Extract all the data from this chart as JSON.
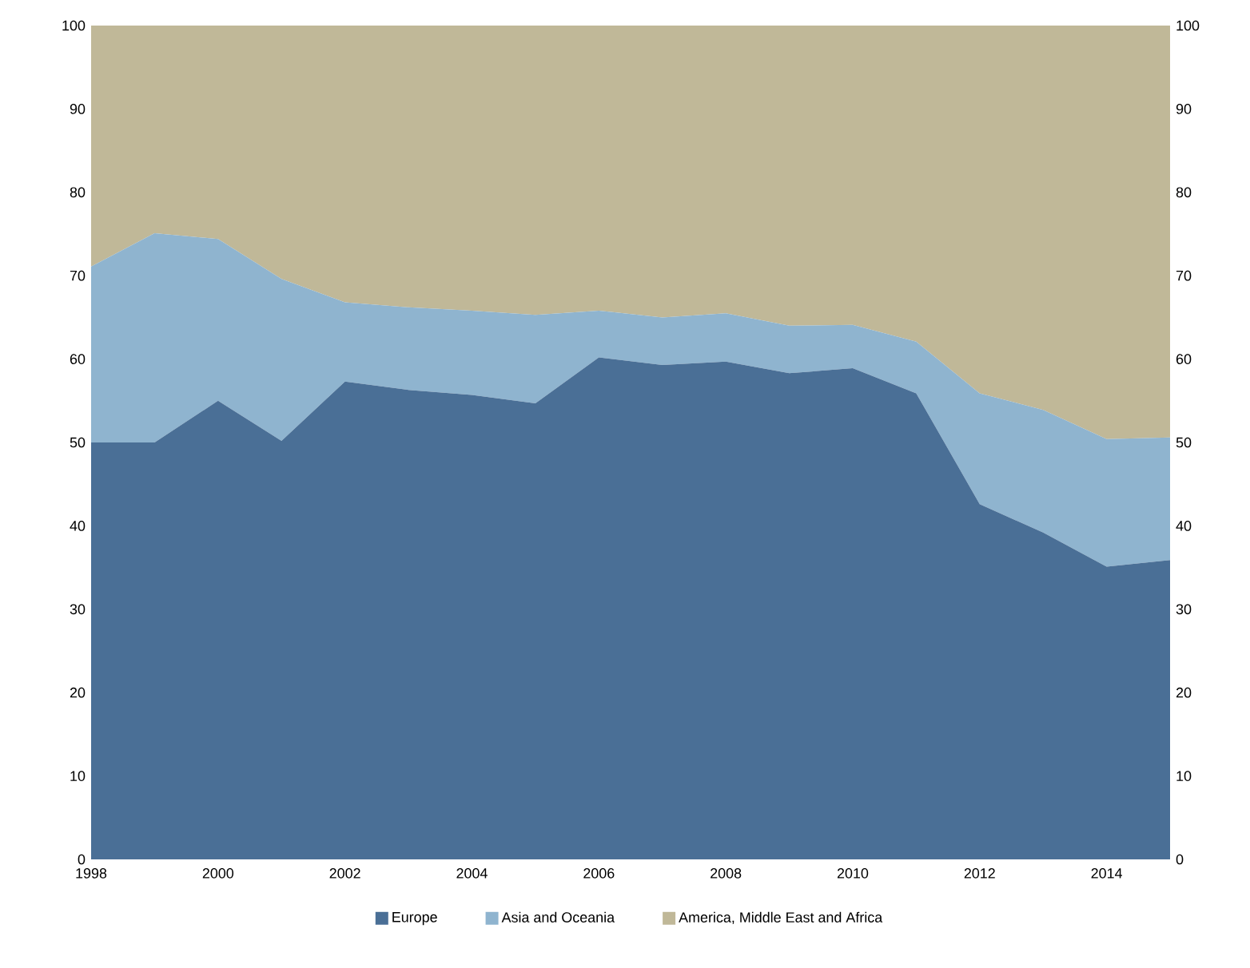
{
  "chart_data": {
    "type": "area",
    "stacked": true,
    "x": [
      1998,
      1999,
      2000,
      2001,
      2002,
      2003,
      2004,
      2005,
      2006,
      2007,
      2008,
      2009,
      2010,
      2011,
      2012,
      2013,
      2014,
      2015
    ],
    "series": [
      {
        "name": "Europe",
        "color": "#4a6f96",
        "values": [
          50,
          50,
          55,
          50.2,
          57.3,
          56.3,
          55.7,
          54.7,
          60.2,
          59.3,
          59.7,
          58.3,
          58.9,
          55.9,
          42.6,
          39.2,
          35.1,
          35.9
        ]
      },
      {
        "name": "Asia and Oceania",
        "color": "#8fb4cf",
        "values": [
          21.1,
          25.1,
          19.4,
          19.4,
          9.5,
          9.9,
          10.1,
          10.6,
          5.6,
          5.7,
          5.8,
          5.7,
          5.2,
          6.2,
          13.3,
          14.7,
          15.3,
          14.7
        ]
      },
      {
        "name": "America, Middle East and Africa",
        "color": "#c0b898",
        "values": [
          28.9,
          24.9,
          25.6,
          30.4,
          33.2,
          33.8,
          34.2,
          34.7,
          34.2,
          35.0,
          34.5,
          36.0,
          35.9,
          37.9,
          44.1,
          46.1,
          49.6,
          49.4
        ]
      }
    ],
    "xlim": [
      1998,
      2015
    ],
    "xticks": [
      1998,
      2000,
      2002,
      2004,
      2006,
      2008,
      2010,
      2012,
      2014
    ],
    "ylim": [
      0,
      100
    ],
    "yticks": [
      0,
      10,
      20,
      30,
      40,
      50,
      60,
      70,
      80,
      90,
      100
    ],
    "y2lim": [
      0,
      100
    ],
    "y2ticks": [
      0,
      10,
      20,
      30,
      40,
      50,
      60,
      70,
      80,
      90,
      100
    ],
    "grid": false,
    "legend": "bottom"
  }
}
